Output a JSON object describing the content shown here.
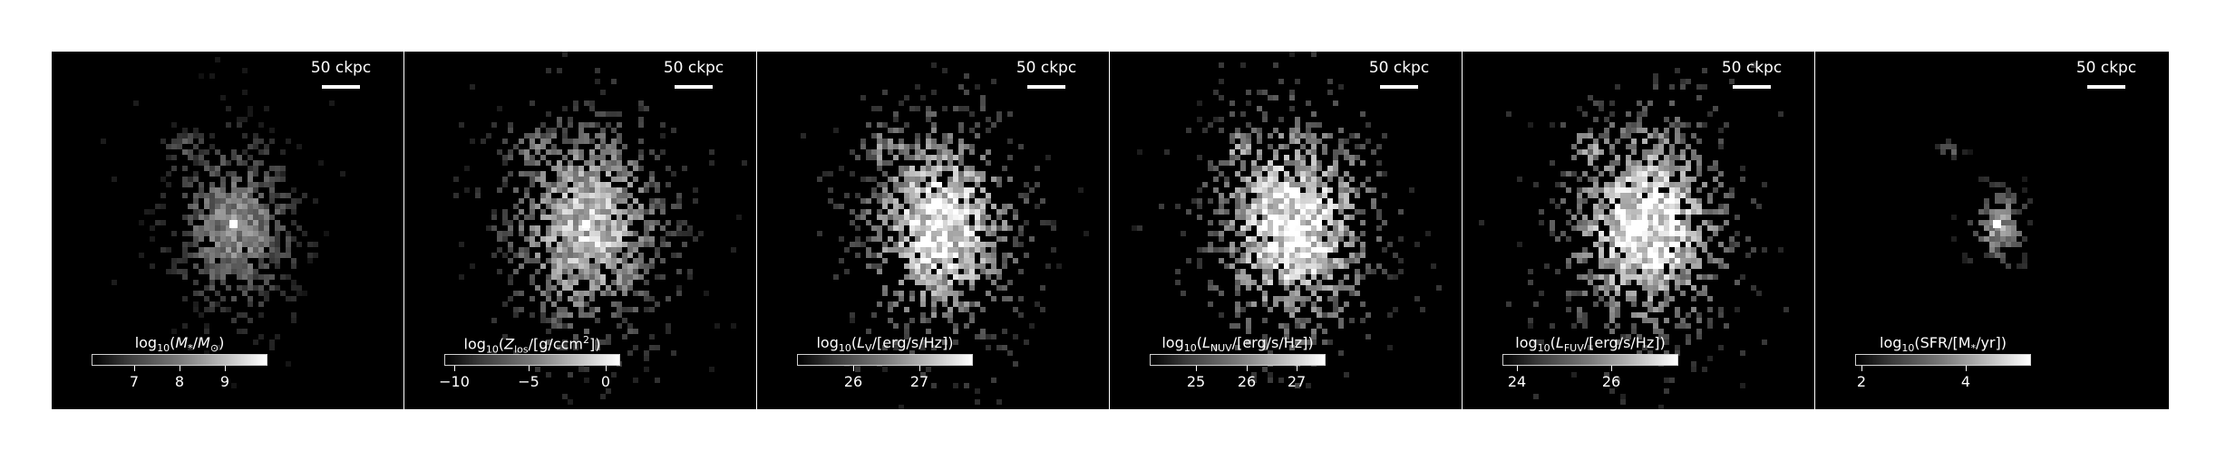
{
  "panels": [
    {
      "scale_label": "50 ckpc",
      "colorbar_label_parts": [
        "log",
        "10",
        "(M",
        "*",
        "/M",
        "⊙",
        ")"
      ],
      "colorbar_label": "log10(M*/M⊙)",
      "ticks": [
        {
          "label": "7",
          "frac": 0.24
        },
        {
          "label": "8",
          "frac": 0.5
        },
        {
          "label": "9",
          "frac": 0.76
        }
      ],
      "blob": {
        "extent": 1.0,
        "brightness": 0.7,
        "core": 1.0
      }
    },
    {
      "scale_label": "50 ckpc",
      "colorbar_label": "log10(Zlos/[g/ccm2])",
      "ticks": [
        {
          "label": "−10",
          "frac": 0.05
        },
        {
          "label": "−5",
          "frac": 0.48
        },
        {
          "label": "0",
          "frac": 0.92
        }
      ],
      "blob": {
        "extent": 1.3,
        "brightness": 1.0,
        "core": 1.0
      }
    },
    {
      "scale_label": "50 ckpc",
      "colorbar_label": "log10(LV/[erg/s/Hz])",
      "ticks": [
        {
          "label": "26",
          "frac": 0.32
        },
        {
          "label": "27",
          "frac": 0.7
        }
      ],
      "blob": {
        "extent": 1.25,
        "brightness": 1.2,
        "core": 0.9
      }
    },
    {
      "scale_label": "50 ckpc",
      "colorbar_label": "log10(LNUV/[erg/s/Hz])",
      "ticks": [
        {
          "label": "25",
          "frac": 0.26
        },
        {
          "label": "26",
          "frac": 0.55
        },
        {
          "label": "27",
          "frac": 0.84
        }
      ],
      "blob": {
        "extent": 1.3,
        "brightness": 1.25,
        "core": 0.9
      }
    },
    {
      "scale_label": "50 ckpc",
      "colorbar_label": "log10(LFUV/[erg/s/Hz])",
      "ticks": [
        {
          "label": "24",
          "frac": 0.08
        },
        {
          "label": "26",
          "frac": 0.62
        }
      ],
      "blob": {
        "extent": 1.3,
        "brightness": 1.25,
        "core": 0.9
      }
    },
    {
      "scale_label": "50 ckpc",
      "colorbar_label": "log10(SFR/[M*/yr])",
      "ticks": [
        {
          "label": "2",
          "frac": 0.03
        },
        {
          "label": "4",
          "frac": 0.63
        }
      ],
      "blob": {
        "extent": 0.45,
        "brightness": 0.8,
        "core": 1.0
      }
    }
  ]
}
